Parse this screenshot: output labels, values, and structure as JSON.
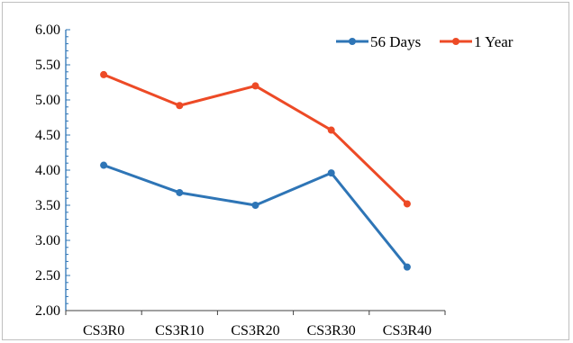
{
  "chart_data": {
    "type": "line",
    "title": "",
    "xlabel": "",
    "ylabel": "",
    "categories": [
      "CS3R0",
      "CS3R10",
      "CS3R20",
      "CS3R30",
      "CS3R40"
    ],
    "ylim": [
      2.0,
      6.0
    ],
    "yticks": [
      "2.00",
      "2.50",
      "3.00",
      "3.50",
      "4.00",
      "4.50",
      "5.00",
      "5.50",
      "6.00"
    ],
    "legend_position": "top-right",
    "grid": false,
    "series": [
      {
        "name": "56 Days",
        "color": "#2e75b6",
        "values": [
          4.07,
          3.68,
          3.5,
          3.96,
          2.62
        ]
      },
      {
        "name": "1 Year",
        "color": "#ed4a26",
        "values": [
          5.36,
          4.92,
          5.2,
          4.57,
          3.52
        ]
      }
    ]
  }
}
